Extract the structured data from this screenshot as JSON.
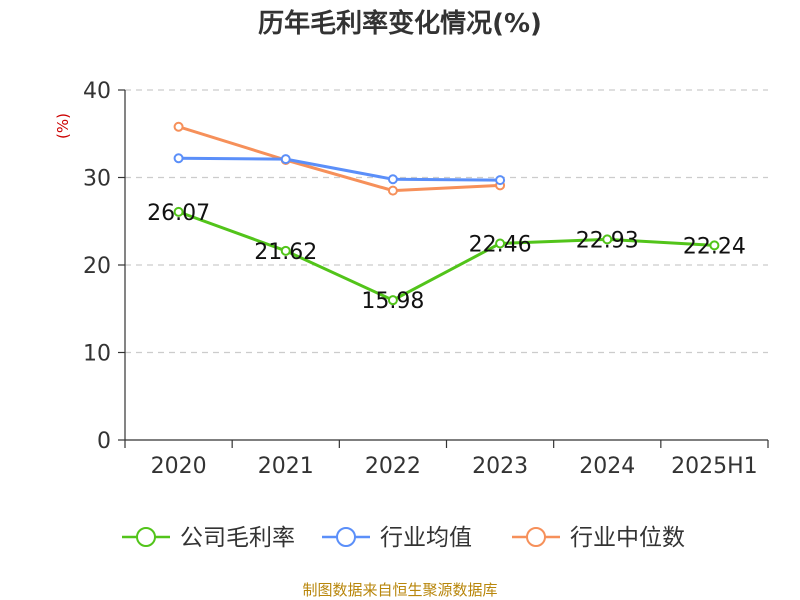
{
  "chart_data": {
    "type": "line",
    "title": "历年毛利率变化情况(%)",
    "ylabel": "(%)",
    "categories": [
      "2020",
      "2021",
      "2022",
      "2023",
      "2024",
      "2025H1"
    ],
    "ylim": [
      0,
      40
    ],
    "yticks": [
      0,
      10,
      20,
      30,
      40
    ],
    "grid": true,
    "legend_position": "bottom",
    "series": [
      {
        "name": "公司毛利率",
        "color": "#52c41a",
        "values": [
          26.07,
          21.62,
          15.98,
          22.46,
          22.93,
          22.24
        ],
        "labels": [
          "26.07",
          "21.62",
          "15.98",
          "22.46",
          "22.93",
          "22.24"
        ]
      },
      {
        "name": "行业均值",
        "color": "#5b8ff9",
        "values": [
          32.2,
          32.1,
          29.8,
          29.7,
          null,
          null
        ]
      },
      {
        "name": "行业中位数",
        "color": "#f6905a",
        "values": [
          35.8,
          32.0,
          28.5,
          29.1,
          null,
          null
        ]
      }
    ]
  },
  "footer": {
    "source": "制图数据来自恒生聚源数据库"
  }
}
